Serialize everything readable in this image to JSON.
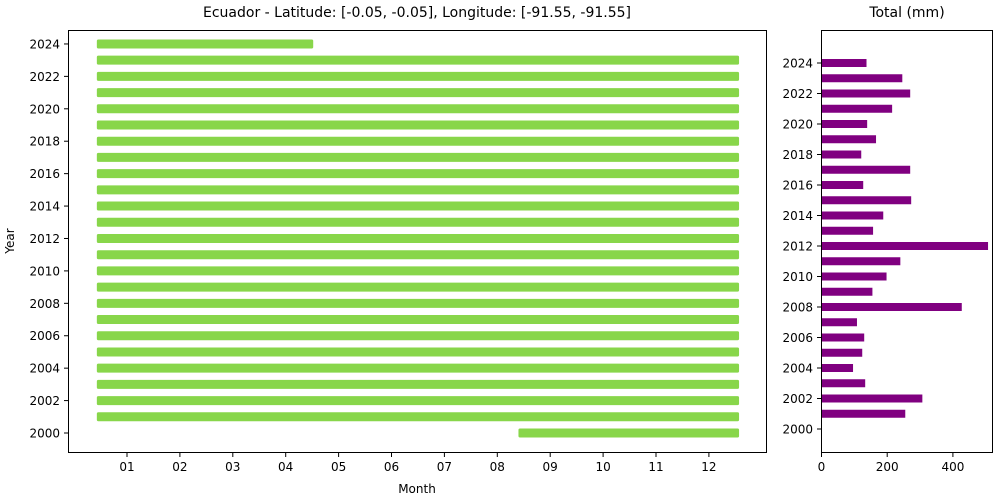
{
  "chart_data": [
    {
      "type": "timeline",
      "title": "Ecuador - Latitude: [-0.05, -0.05], Longitude: [-91.55, -91.55]",
      "xlabel": "Month",
      "ylabel": "Year",
      "xticks": [
        "01",
        "02",
        "03",
        "04",
        "05",
        "06",
        "07",
        "08",
        "09",
        "10",
        "11",
        "12"
      ],
      "yticks": [
        "2000",
        "2002",
        "2004",
        "2006",
        "2008",
        "2010",
        "2012",
        "2014",
        "2016",
        "2018",
        "2020",
        "2022",
        "2024"
      ],
      "color": "#88d64a",
      "grid": false,
      "series": [
        {
          "year": 2000,
          "start_month": 8.4,
          "end_month": 12.57
        },
        {
          "year": 2001,
          "start_month": 0.43,
          "end_month": 12.57
        },
        {
          "year": 2002,
          "start_month": 0.43,
          "end_month": 12.57
        },
        {
          "year": 2003,
          "start_month": 0.43,
          "end_month": 12.57
        },
        {
          "year": 2004,
          "start_month": 0.43,
          "end_month": 12.57
        },
        {
          "year": 2005,
          "start_month": 0.43,
          "end_month": 12.57
        },
        {
          "year": 2006,
          "start_month": 0.43,
          "end_month": 12.57
        },
        {
          "year": 2007,
          "start_month": 0.43,
          "end_month": 12.57
        },
        {
          "year": 2008,
          "start_month": 0.43,
          "end_month": 12.57
        },
        {
          "year": 2009,
          "start_month": 0.43,
          "end_month": 12.57
        },
        {
          "year": 2010,
          "start_month": 0.43,
          "end_month": 12.57
        },
        {
          "year": 2011,
          "start_month": 0.43,
          "end_month": 12.57
        },
        {
          "year": 2012,
          "start_month": 0.43,
          "end_month": 12.57
        },
        {
          "year": 2013,
          "start_month": 0.43,
          "end_month": 12.57
        },
        {
          "year": 2014,
          "start_month": 0.43,
          "end_month": 12.57
        },
        {
          "year": 2015,
          "start_month": 0.43,
          "end_month": 12.57
        },
        {
          "year": 2016,
          "start_month": 0.43,
          "end_month": 12.57
        },
        {
          "year": 2017,
          "start_month": 0.43,
          "end_month": 12.57
        },
        {
          "year": 2018,
          "start_month": 0.43,
          "end_month": 12.57
        },
        {
          "year": 2019,
          "start_month": 0.43,
          "end_month": 12.57
        },
        {
          "year": 2020,
          "start_month": 0.43,
          "end_month": 12.57
        },
        {
          "year": 2021,
          "start_month": 0.43,
          "end_month": 12.57
        },
        {
          "year": 2022,
          "start_month": 0.43,
          "end_month": 12.57
        },
        {
          "year": 2023,
          "start_month": 0.43,
          "end_month": 12.57
        },
        {
          "year": 2024,
          "start_month": 0.43,
          "end_month": 4.52
        }
      ]
    },
    {
      "type": "bar",
      "orientation": "horizontal",
      "title": "Total (mm)",
      "xlabel": "",
      "ylabel": "",
      "xticks": [
        "0",
        "200",
        "400"
      ],
      "yticks": [
        "2000",
        "2002",
        "2004",
        "2006",
        "2008",
        "2010",
        "2012",
        "2014",
        "2016",
        "2018",
        "2020",
        "2022",
        "2024"
      ],
      "xlim": [
        0,
        525
      ],
      "color": "#800080",
      "categories": [
        2000,
        2001,
        2002,
        2003,
        2004,
        2005,
        2006,
        2007,
        2008,
        2009,
        2010,
        2011,
        2012,
        2013,
        2014,
        2015,
        2016,
        2017,
        2018,
        2019,
        2020,
        2021,
        2022,
        2023,
        2024
      ],
      "values": [
        0,
        255,
        307,
        133,
        96,
        124,
        130,
        108,
        427,
        155,
        198,
        240,
        507,
        157,
        188,
        273,
        127,
        270,
        121,
        166,
        139,
        215,
        270,
        246,
        137
      ]
    }
  ]
}
